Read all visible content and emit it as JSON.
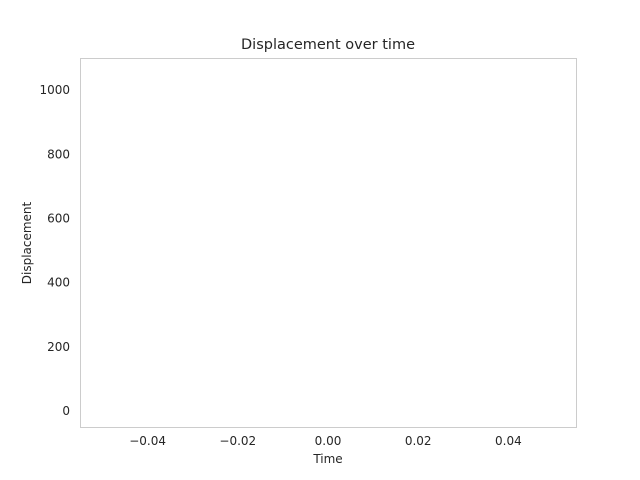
{
  "chart_data": {
    "type": "line",
    "title": "Displacement over time",
    "xlabel": "Time",
    "ylabel": "Displacement",
    "xlim": [
      -0.055,
      0.055
    ],
    "ylim": [
      -50,
      1100
    ],
    "xticks": [
      -0.04,
      -0.02,
      0.0,
      0.02,
      0.04
    ],
    "xtick_labels": [
      "−0.04",
      "−0.02",
      "0.00",
      "0.02",
      "0.04"
    ],
    "yticks": [
      0,
      200,
      400,
      600,
      800,
      1000
    ],
    "ytick_labels": [
      "0",
      "200",
      "400",
      "600",
      "800",
      "1000"
    ],
    "grid": false,
    "series": [
      {
        "x": [],
        "y": []
      }
    ]
  }
}
